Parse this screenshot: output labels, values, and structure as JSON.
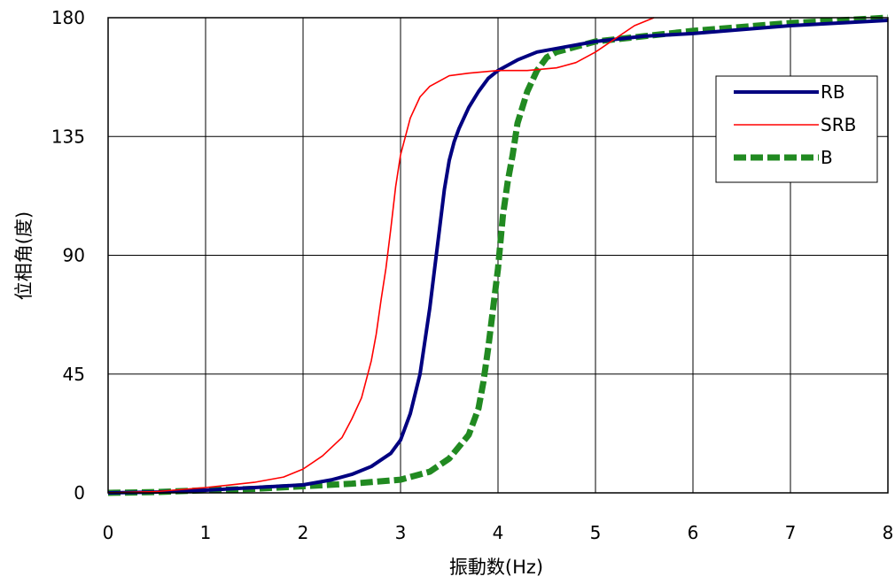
{
  "chart_data": {
    "type": "line",
    "xlabel": "振動数(Hz)",
    "ylabel": "位相角(度)",
    "xlim": [
      0,
      8
    ],
    "ylim": [
      0,
      180
    ],
    "xticks": [
      "0",
      "1",
      "2",
      "3",
      "4",
      "5",
      "6",
      "7",
      "8"
    ],
    "yticks": [
      "0",
      "45",
      "90",
      "135",
      "180"
    ],
    "grid": true,
    "legend_position": "upper-right",
    "series": [
      {
        "name": "RB",
        "color": "#000080",
        "style": "solid-thick",
        "x": [
          0,
          0.5,
          1.0,
          1.5,
          2.0,
          2.3,
          2.5,
          2.7,
          2.9,
          3.0,
          3.1,
          3.2,
          3.3,
          3.35,
          3.4,
          3.45,
          3.5,
          3.55,
          3.6,
          3.7,
          3.8,
          3.9,
          4.0,
          4.2,
          4.4,
          4.7,
          5.0,
          5.5,
          6.0,
          7.0,
          8.0
        ],
        "y": [
          0,
          0.3,
          1,
          2,
          3,
          5,
          7,
          10,
          15,
          20,
          30,
          45,
          70,
          85,
          100,
          115,
          126,
          133,
          138,
          146,
          152,
          157,
          160,
          164,
          167,
          169,
          171,
          173,
          174,
          177,
          179
        ]
      },
      {
        "name": "SRB",
        "color": "#ff0000",
        "style": "solid-thin",
        "x": [
          0,
          0.5,
          1.0,
          1.5,
          1.8,
          2.0,
          2.2,
          2.4,
          2.5,
          2.6,
          2.7,
          2.75,
          2.8,
          2.85,
          2.9,
          2.95,
          3.0,
          3.05,
          3.1,
          3.2,
          3.3,
          3.4,
          3.5,
          3.7,
          4.0,
          4.3,
          4.6,
          4.8,
          5.0,
          5.2,
          5.4,
          5.6
        ],
        "y": [
          0,
          0.5,
          2,
          4,
          6,
          9,
          14,
          21,
          28,
          36,
          50,
          60,
          73,
          85,
          100,
          116,
          128,
          135,
          142,
          150,
          154,
          156,
          158,
          159,
          160,
          160,
          161,
          163,
          167,
          172,
          177,
          180
        ]
      },
      {
        "name": "B",
        "color": "#218a21",
        "style": "dashed-thick",
        "x": [
          0,
          0.5,
          1.0,
          1.5,
          2.0,
          2.5,
          3.0,
          3.3,
          3.5,
          3.7,
          3.8,
          3.85,
          3.9,
          3.95,
          4.0,
          4.05,
          4.1,
          4.15,
          4.2,
          4.3,
          4.4,
          4.5,
          4.6,
          4.8,
          5.0,
          5.5,
          6.0,
          7.0,
          8.0
        ],
        "y": [
          0,
          0.3,
          1,
          1.5,
          2.5,
          3.5,
          5,
          8,
          13,
          22,
          32,
          42,
          55,
          70,
          85,
          105,
          118,
          128,
          140,
          152,
          160,
          165,
          167,
          169,
          171,
          173,
          175,
          178,
          180
        ]
      }
    ]
  }
}
